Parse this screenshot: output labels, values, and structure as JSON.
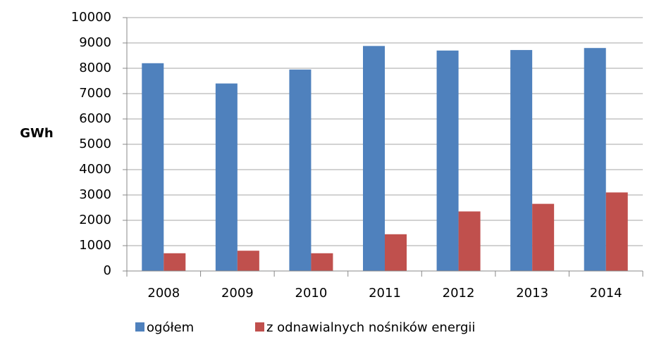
{
  "chart_data": {
    "type": "bar",
    "y_label": "GWh",
    "categories": [
      "2008",
      "2009",
      "2010",
      "2011",
      "2012",
      "2013",
      "2014"
    ],
    "series": [
      {
        "name": "ogółem",
        "color": "#4f81bd",
        "values": [
          8200,
          7400,
          7950,
          8880,
          8700,
          8720,
          8800
        ]
      },
      {
        "name": "z odnawialnych nośników energii",
        "color": "#c0504d",
        "values": [
          700,
          800,
          700,
          1450,
          2350,
          2650,
          3100
        ]
      }
    ],
    "ylim": [
      0,
      10000
    ],
    "yticks": [
      0,
      1000,
      2000,
      3000,
      4000,
      5000,
      6000,
      7000,
      8000,
      9000,
      10000
    ],
    "grid": true,
    "legend": "bottom"
  }
}
